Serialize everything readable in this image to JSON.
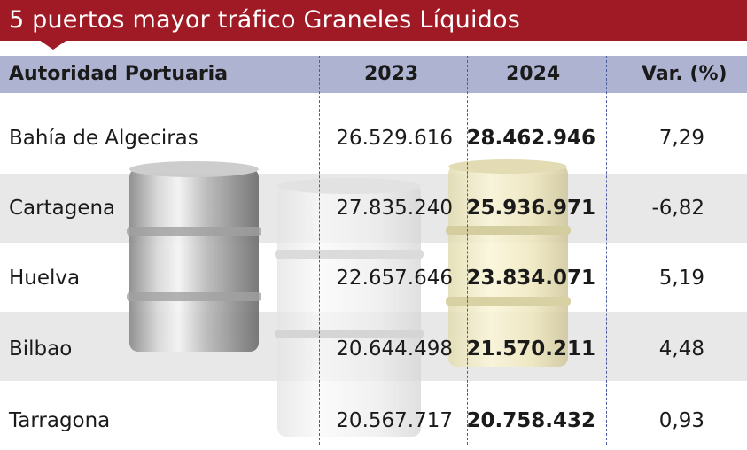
{
  "title": "5 puertos mayor tráfico Graneles Líquidos",
  "columns": {
    "port": "Autoridad Portuaria",
    "y2023": "2023",
    "y2024": "2024",
    "var": "Var. (%)"
  },
  "rows": [
    {
      "port": "Bahía de Algeciras",
      "y2023": "26.529.616",
      "y2024": "28.462.946",
      "var": "7,29"
    },
    {
      "port": "Cartagena",
      "y2023": "27.835.240",
      "y2024": "25.936.971",
      "var": "-6,82"
    },
    {
      "port": "Huelva",
      "y2023": "22.657.646",
      "y2024": "23.834.071",
      "var": "5,19"
    },
    {
      "port": "Bilbao",
      "y2023": "20.644.498",
      "y2024": "21.570.211",
      "var": "4,48"
    },
    {
      "port": "Tarragona",
      "y2023": "20.567.717",
      "y2024": "20.758.432",
      "var": "0,93"
    }
  ],
  "colors": {
    "title_bg": "#a01a25",
    "header_bg": "#aeb3d2",
    "row_shade": "#e8e8e8",
    "divider": "#4a5ba0"
  }
}
